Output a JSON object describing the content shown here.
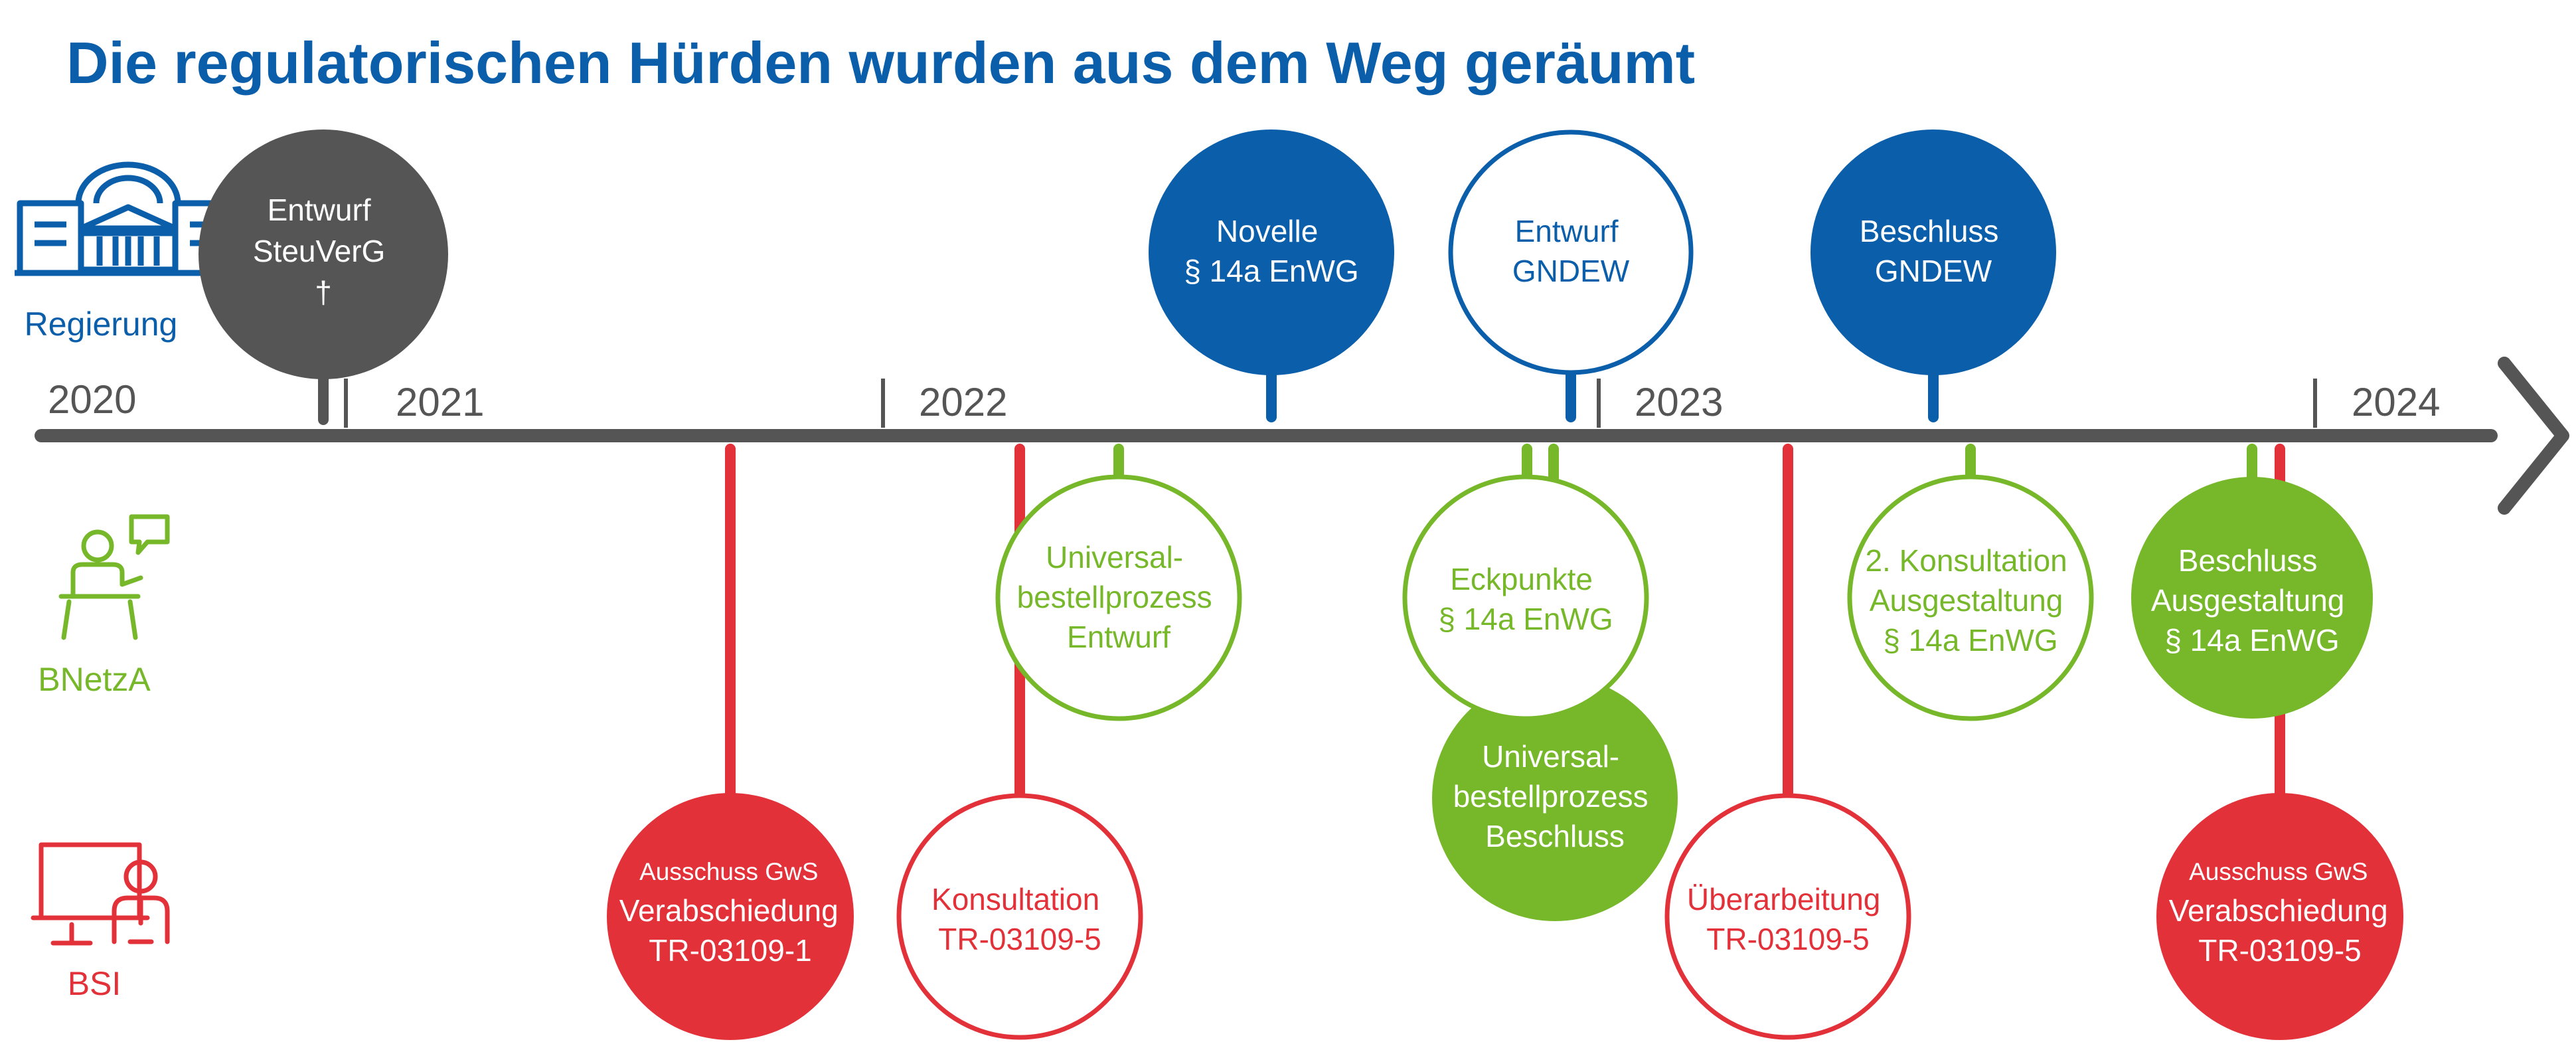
{
  "title": "Die regulatorischen Hürden wurden aus dem Weg geräumt",
  "colors": {
    "title": "#0a5eaa",
    "regierung": "#0a5eaa",
    "regierung_dark": "#555555",
    "bnetza": "#77b82a",
    "bsi": "#e3313a",
    "axis": "#555555",
    "year_text": "#555555"
  },
  "rows": {
    "regierung": {
      "label": "Regierung",
      "icon": "parliament-building-icon"
    },
    "bnetza": {
      "label": "BNetzA",
      "icon": "speaker-podium-icon"
    },
    "bsi": {
      "label": "BSI",
      "icon": "computer-presenter-icon"
    }
  },
  "years": [
    "2020",
    "2021",
    "2022",
    "2023",
    "2024"
  ],
  "events": [
    {
      "id": "entwurf-steuverg",
      "row": "regierung",
      "style": "filled-gray",
      "lines": [
        "Entwurf",
        "SteuVerG",
        "†"
      ]
    },
    {
      "id": "novelle-14a",
      "row": "regierung",
      "style": "filled-blue",
      "lines": [
        "Novelle",
        "§ 14a EnWG"
      ]
    },
    {
      "id": "entwurf-gndew",
      "row": "regierung",
      "style": "outline-blue",
      "lines": [
        "Entwurf",
        "GNDEW"
      ]
    },
    {
      "id": "beschluss-gndew",
      "row": "regierung",
      "style": "filled-blue",
      "lines": [
        "Beschluss",
        "GNDEW"
      ]
    },
    {
      "id": "universal-entwurf",
      "row": "bnetza",
      "style": "outline-green",
      "lines": [
        "Universal-",
        "bestellprozess",
        "Entwurf"
      ]
    },
    {
      "id": "eckpunkte-14a",
      "row": "bnetza",
      "style": "outline-green",
      "lines": [
        "Eckpunkte",
        "§ 14a EnWG"
      ]
    },
    {
      "id": "universal-beschluss",
      "row": "bnetza",
      "style": "filled-green",
      "lines": [
        "Universal-",
        "bestellprozess",
        "Beschluss"
      ]
    },
    {
      "id": "konsultation2-14a",
      "row": "bnetza",
      "style": "outline-green",
      "lines": [
        "2. Konsultation",
        "Ausgestaltung",
        "§ 14a EnWG"
      ]
    },
    {
      "id": "beschluss-ausgestaltung",
      "row": "bnetza",
      "style": "filled-green",
      "lines": [
        "Beschluss",
        "Ausgestaltung",
        "§ 14a EnWG"
      ]
    },
    {
      "id": "ausschuss-tr1",
      "row": "bsi",
      "style": "filled-red",
      "lines": [
        "Ausschuss GwS",
        "Verabschiedung",
        "TR-03109-1"
      ]
    },
    {
      "id": "konsultation-tr5",
      "row": "bsi",
      "style": "outline-red",
      "lines": [
        "Konsultation",
        "TR-03109-5"
      ]
    },
    {
      "id": "ueberarbeitung-tr5",
      "row": "bsi",
      "style": "outline-red",
      "lines": [
        "Überarbeitung",
        "TR-03109-5"
      ]
    },
    {
      "id": "ausschuss-tr5",
      "row": "bsi",
      "style": "filled-red",
      "lines": [
        "Ausschuss GwS",
        "Verabschiedung",
        "TR-03109-5"
      ]
    }
  ]
}
